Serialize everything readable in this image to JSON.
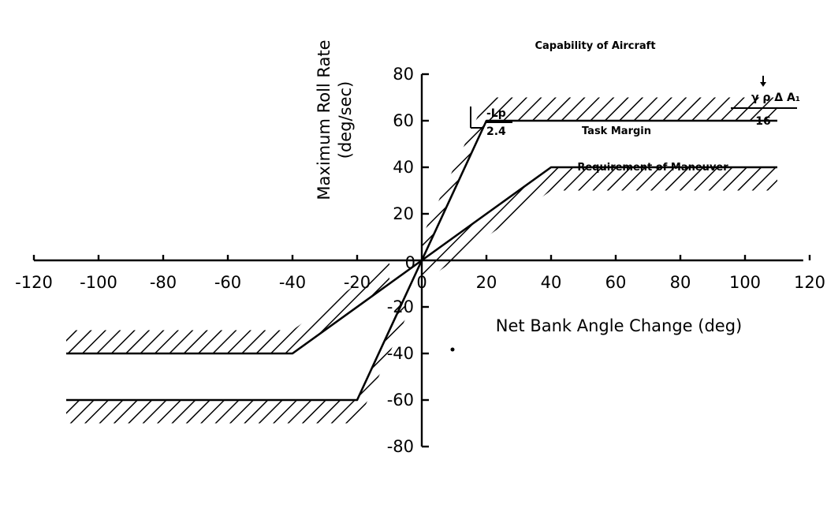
{
  "chart_data": {
    "type": "line",
    "title": "",
    "xlabel": "Net Bank Angle Change (deg)",
    "ylabel_line1": "Maximum Roll Rate",
    "ylabel_line2": "(deg/sec)",
    "xlim": [
      -120,
      120
    ],
    "ylim": [
      -80,
      80
    ],
    "x_ticks": [
      -120,
      -100,
      -80,
      -60,
      -40,
      -20,
      0,
      20,
      40,
      60,
      80,
      100,
      120
    ],
    "x_tick_labels": [
      "-120",
      "-100",
      "-80",
      "-60",
      "-40",
      "-20",
      "0",
      "20",
      "40",
      "60",
      "80",
      "100",
      "120"
    ],
    "y_ticks": [
      80,
      60,
      40,
      20,
      0,
      -20,
      -40,
      -60,
      -80
    ],
    "y_tick_labels": [
      "80",
      "60",
      "40",
      "20",
      "0",
      "-20",
      "-40",
      "-60",
      "-80"
    ],
    "grid": false,
    "series": [
      {
        "name": "Capability of Aircraft",
        "x": [
          -110,
          -20,
          0,
          20,
          110
        ],
        "y": [
          -60,
          -60,
          0,
          60,
          60
        ]
      },
      {
        "name": "Requirement of Maneuver",
        "x": [
          -110,
          -40,
          0,
          40,
          110
        ],
        "y": [
          -40,
          -40,
          0,
          40,
          40
        ]
      }
    ],
    "annotations": {
      "task_margin": "Task Margin",
      "slope_numerator": "-Lp",
      "slope_denominator": "2.4",
      "margin_numerator": "γ ρ Δ A₁",
      "margin_denominator": "16"
    }
  }
}
